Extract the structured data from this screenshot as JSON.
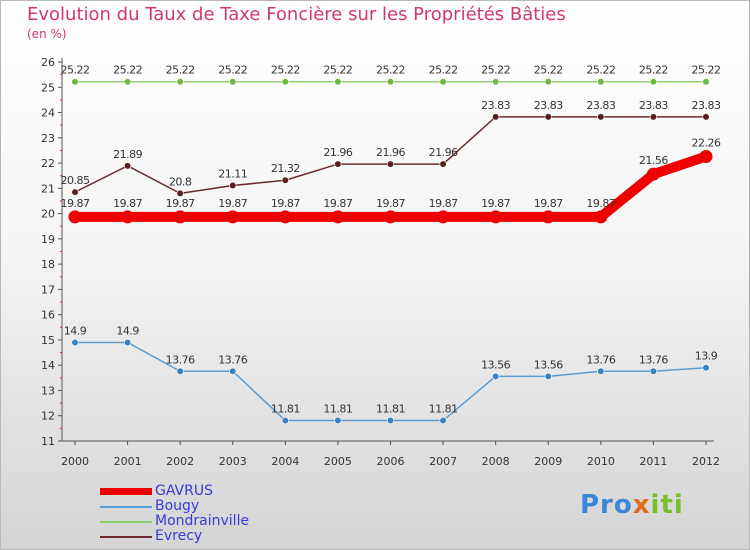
{
  "title": "Evolution du Taux de Taxe Foncière sur les Propriétés Bâties",
  "subtitle": "(en %)",
  "logo": {
    "text": "Proxiti",
    "part1": "Pro",
    "part2": "x",
    "part3": "iti"
  },
  "chart_data": {
    "type": "line",
    "title": "Evolution du Taux de Taxe Foncière sur les Propriétés Bâties",
    "ylabel": "(en %)",
    "xlabel": "",
    "ylim": [
      11,
      26
    ],
    "yticks": [
      11,
      12,
      13,
      14,
      15,
      16,
      17,
      18,
      19,
      20,
      21,
      22,
      23,
      24,
      25,
      26
    ],
    "categories": [
      "2000",
      "2001",
      "2002",
      "2003",
      "2004",
      "2005",
      "2006",
      "2007",
      "2008",
      "2009",
      "2010",
      "2011",
      "2012"
    ],
    "grid": false,
    "series": [
      {
        "name": "Mondrainville",
        "color": "#8ed16e",
        "marker_color": "#6db844",
        "values": [
          25.22,
          25.22,
          25.22,
          25.22,
          25.22,
          25.22,
          25.22,
          25.22,
          25.22,
          25.22,
          25.22,
          25.22,
          25.22
        ],
        "labels": [
          "25.22",
          "25.22",
          "25.22",
          "25.22",
          "25.22",
          "25.22",
          "25.22",
          "25.22",
          "25.22",
          "25.22",
          "25.22",
          "25.22",
          "25.22"
        ]
      },
      {
        "name": "Evrecy",
        "color": "#6b2a2a",
        "marker_color": "#5a1f1f",
        "values": [
          20.85,
          21.89,
          20.8,
          21.11,
          21.32,
          21.96,
          21.96,
          21.96,
          23.83,
          23.83,
          23.83,
          23.83,
          23.83
        ],
        "labels": [
          "20.85",
          "21.89",
          "20.8",
          "21.11",
          "21.32",
          "21.96",
          "21.96",
          "21.96",
          "23.83",
          "23.83",
          "23.83",
          "23.83",
          "23.83"
        ]
      },
      {
        "name": "GAVRUS",
        "color": "#ee0000",
        "marker_color": "#ee0000",
        "values": [
          19.87,
          19.87,
          19.87,
          19.87,
          19.87,
          19.87,
          19.87,
          19.87,
          19.87,
          19.87,
          19.87,
          21.56,
          22.26
        ],
        "labels": [
          "19.87",
          "19.87",
          "19.87",
          "19.87",
          "19.87",
          "19.87",
          "19.87",
          "19.87",
          "19.87",
          "19.87",
          "19.87",
          "21.56",
          "22.26"
        ]
      },
      {
        "name": "Bougy",
        "color": "#5b9bd0",
        "marker_color": "#3a7fc0",
        "values": [
          14.9,
          14.9,
          13.76,
          13.76,
          11.81,
          11.81,
          11.81,
          11.81,
          13.56,
          13.56,
          13.76,
          13.76,
          13.9
        ],
        "labels": [
          "14.9",
          "14.9",
          "13.76",
          "13.76",
          "11.81",
          "11.81",
          "11.81",
          "11.81",
          "13.56",
          "13.56",
          "13.76",
          "13.76",
          "13.9"
        ]
      }
    ],
    "legend": {
      "position": "bottom-left",
      "entries": [
        {
          "name": "GAVRUS",
          "color": "#ee0000"
        },
        {
          "name": "Bougy",
          "color": "#5b9bd0"
        },
        {
          "name": "Mondrainville",
          "color": "#8ed16e"
        },
        {
          "name": "Evrecy",
          "color": "#6b2a2a"
        }
      ]
    }
  }
}
